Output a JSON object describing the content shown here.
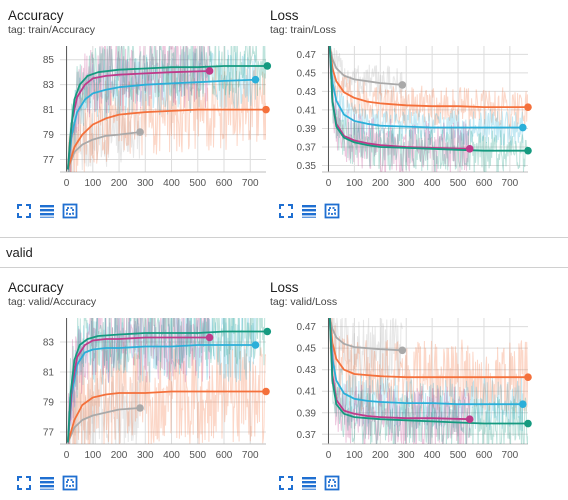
{
  "colors": {
    "grid": "#dcdcdc",
    "axis": "#555555",
    "tick": "#555555",
    "tool_icon": "#1f6fd1",
    "noise_alpha": 0.28
  },
  "section": {
    "label": "valid"
  },
  "toolbar": {
    "icons": [
      "fit-screen-icon",
      "data-table-icon",
      "zoom-box-icon"
    ]
  },
  "chart_data": [
    {
      "type": "line",
      "title": "Accuracy",
      "tag": "tag: train/Accuracy",
      "xlim": [
        -25,
        760
      ],
      "ylim": [
        76.0,
        86.1
      ],
      "xticks": [
        0,
        100,
        200,
        300,
        400,
        500,
        600,
        700
      ],
      "yticks": [
        77,
        79,
        81,
        83,
        85
      ],
      "grid": true,
      "series": [
        {
          "color": "#a9a9a9",
          "x": [
            5,
            30,
            60,
            100,
            150,
            200,
            280
          ],
          "y": [
            76.2,
            77.6,
            78.2,
            78.6,
            78.9,
            79.0,
            79.2
          ],
          "noise_spread": 2.5
        },
        {
          "color": "#f4703b",
          "x": [
            5,
            30,
            60,
            100,
            150,
            200,
            300,
            400,
            500,
            600,
            700,
            760
          ],
          "y": [
            76.2,
            78.0,
            79.0,
            79.8,
            80.3,
            80.6,
            80.8,
            80.9,
            81.0,
            81.0,
            81.0,
            81.0
          ],
          "noise_spread": 3.5
        },
        {
          "color": "#2bafd9",
          "x": [
            5,
            20,
            40,
            70,
            100,
            150,
            200,
            300,
            400,
            500,
            600,
            720
          ],
          "y": [
            76.2,
            79.0,
            80.8,
            81.8,
            82.3,
            82.6,
            82.8,
            83.0,
            83.1,
            83.2,
            83.3,
            83.4
          ],
          "noise_spread": 2.5
        },
        {
          "color": "#bf3a8a",
          "x": [
            5,
            20,
            40,
            70,
            100,
            150,
            200,
            300,
            400,
            545
          ],
          "y": [
            76.2,
            80.0,
            82.0,
            83.0,
            83.5,
            83.7,
            83.8,
            83.9,
            84.0,
            84.1
          ],
          "noise_spread": 3.0
        },
        {
          "color": "#159a80",
          "x": [
            5,
            15,
            30,
            50,
            80,
            120,
            200,
            300,
            400,
            500,
            600,
            700,
            765
          ],
          "y": [
            76.2,
            79.0,
            81.8,
            83.0,
            83.7,
            84.0,
            84.2,
            84.3,
            84.4,
            84.4,
            84.5,
            84.5,
            84.5
          ],
          "noise_spread": 2.5
        }
      ]
    },
    {
      "type": "line",
      "title": "Loss",
      "tag": "tag: train/Loss",
      "xlim": [
        -25,
        770
      ],
      "ylim": [
        0.343,
        0.479
      ],
      "xticks": [
        0,
        100,
        200,
        300,
        400,
        500,
        600,
        700
      ],
      "yticks": [
        0.35,
        0.37,
        0.39,
        0.41,
        0.43,
        0.45,
        0.47
      ],
      "grid": true,
      "series": [
        {
          "color": "#a9a9a9",
          "x": [
            5,
            15,
            30,
            60,
            100,
            150,
            200,
            285
          ],
          "y": [
            0.479,
            0.465,
            0.455,
            0.447,
            0.443,
            0.441,
            0.439,
            0.437
          ],
          "noise_spread": 0.02
        },
        {
          "color": "#f4703b",
          "x": [
            5,
            15,
            30,
            60,
            100,
            150,
            200,
            300,
            400,
            500,
            600,
            700,
            770
          ],
          "y": [
            0.479,
            0.455,
            0.441,
            0.429,
            0.423,
            0.419,
            0.417,
            0.415,
            0.414,
            0.414,
            0.413,
            0.413,
            0.413
          ],
          "noise_spread": 0.022
        },
        {
          "color": "#2bafd9",
          "x": [
            5,
            15,
            30,
            60,
            100,
            150,
            200,
            300,
            400,
            500,
            600,
            750
          ],
          "y": [
            0.479,
            0.44,
            0.42,
            0.405,
            0.398,
            0.395,
            0.393,
            0.392,
            0.391,
            0.391,
            0.391,
            0.391
          ],
          "noise_spread": 0.02
        },
        {
          "color": "#bf3a8a",
          "x": [
            5,
            15,
            30,
            60,
            100,
            150,
            200,
            300,
            400,
            545
          ],
          "y": [
            0.479,
            0.42,
            0.395,
            0.382,
            0.377,
            0.374,
            0.372,
            0.37,
            0.369,
            0.368
          ],
          "noise_spread": 0.03
        },
        {
          "color": "#159a80",
          "x": [
            5,
            15,
            30,
            60,
            100,
            150,
            200,
            300,
            400,
            500,
            600,
            700,
            770
          ],
          "y": [
            0.479,
            0.42,
            0.392,
            0.38,
            0.375,
            0.372,
            0.37,
            0.369,
            0.368,
            0.367,
            0.366,
            0.366,
            0.366
          ],
          "noise_spread": 0.025
        }
      ]
    },
    {
      "type": "line",
      "title": "Accuracy",
      "tag": "tag: valid/Accuracy",
      "xlim": [
        -25,
        760
      ],
      "ylim": [
        76.2,
        84.6
      ],
      "xticks": [
        0,
        100,
        200,
        300,
        400,
        500,
        600,
        700
      ],
      "yticks": [
        77,
        79,
        81,
        83
      ],
      "grid": true,
      "series": [
        {
          "color": "#a9a9a9",
          "x": [
            5,
            30,
            60,
            100,
            150,
            200,
            280
          ],
          "y": [
            76.3,
            77.3,
            77.8,
            78.1,
            78.3,
            78.5,
            78.6
          ],
          "noise_spread": 2.5
        },
        {
          "color": "#f4703b",
          "x": [
            5,
            30,
            60,
            100,
            150,
            200,
            300,
            400,
            500,
            600,
            700,
            760
          ],
          "y": [
            76.3,
            77.8,
            78.8,
            79.3,
            79.5,
            79.6,
            79.6,
            79.7,
            79.7,
            79.7,
            79.7,
            79.7
          ],
          "noise_spread": 3.5
        },
        {
          "color": "#2bafd9",
          "x": [
            5,
            20,
            40,
            70,
            100,
            150,
            200,
            300,
            400,
            500,
            600,
            720
          ],
          "y": [
            76.3,
            79.5,
            81.5,
            82.3,
            82.5,
            82.6,
            82.6,
            82.7,
            82.7,
            82.8,
            82.8,
            82.8
          ],
          "noise_spread": 2.5
        },
        {
          "color": "#bf3a8a",
          "x": [
            5,
            20,
            40,
            70,
            100,
            150,
            200,
            300,
            400,
            545
          ],
          "y": [
            76.3,
            80.0,
            82.0,
            82.8,
            83.1,
            83.2,
            83.2,
            83.3,
            83.3,
            83.3
          ],
          "noise_spread": 3.0
        },
        {
          "color": "#159a80",
          "x": [
            5,
            15,
            30,
            50,
            80,
            120,
            200,
            300,
            400,
            500,
            600,
            700,
            765
          ],
          "y": [
            76.3,
            79.5,
            81.8,
            82.8,
            83.2,
            83.4,
            83.5,
            83.6,
            83.6,
            83.6,
            83.7,
            83.7,
            83.7
          ],
          "noise_spread": 2.5
        }
      ]
    },
    {
      "type": "line",
      "title": "Loss",
      "tag": "tag: valid/Loss",
      "xlim": [
        -25,
        770
      ],
      "ylim": [
        0.361,
        0.478
      ],
      "xticks": [
        0,
        100,
        200,
        300,
        400,
        500,
        600,
        700
      ],
      "yticks": [
        0.37,
        0.39,
        0.41,
        0.43,
        0.45,
        0.47
      ],
      "grid": true,
      "series": [
        {
          "color": "#a9a9a9",
          "x": [
            5,
            15,
            30,
            60,
            100,
            150,
            200,
            285
          ],
          "y": [
            0.478,
            0.468,
            0.46,
            0.454,
            0.451,
            0.45,
            0.449,
            0.448
          ],
          "noise_spread": 0.03
        },
        {
          "color": "#f4703b",
          "x": [
            5,
            15,
            30,
            60,
            100,
            150,
            200,
            300,
            400,
            500,
            600,
            700,
            770
          ],
          "y": [
            0.478,
            0.455,
            0.44,
            0.43,
            0.426,
            0.425,
            0.424,
            0.423,
            0.423,
            0.423,
            0.423,
            0.423,
            0.423
          ],
          "noise_spread": 0.035
        },
        {
          "color": "#2bafd9",
          "x": [
            5,
            15,
            30,
            60,
            100,
            150,
            200,
            300,
            400,
            500,
            600,
            750
          ],
          "y": [
            0.478,
            0.44,
            0.42,
            0.408,
            0.403,
            0.401,
            0.4,
            0.399,
            0.399,
            0.398,
            0.398,
            0.398
          ],
          "noise_spread": 0.025
        },
        {
          "color": "#bf3a8a",
          "x": [
            5,
            15,
            30,
            60,
            100,
            150,
            200,
            300,
            400,
            545
          ],
          "y": [
            0.478,
            0.425,
            0.402,
            0.392,
            0.389,
            0.387,
            0.386,
            0.385,
            0.385,
            0.384
          ],
          "noise_spread": 0.03
        },
        {
          "color": "#159a80",
          "x": [
            5,
            15,
            30,
            60,
            100,
            150,
            200,
            300,
            400,
            500,
            600,
            700,
            770
          ],
          "y": [
            0.478,
            0.42,
            0.398,
            0.389,
            0.386,
            0.385,
            0.384,
            0.383,
            0.382,
            0.381,
            0.38,
            0.38,
            0.38
          ],
          "noise_spread": 0.025
        }
      ]
    }
  ]
}
